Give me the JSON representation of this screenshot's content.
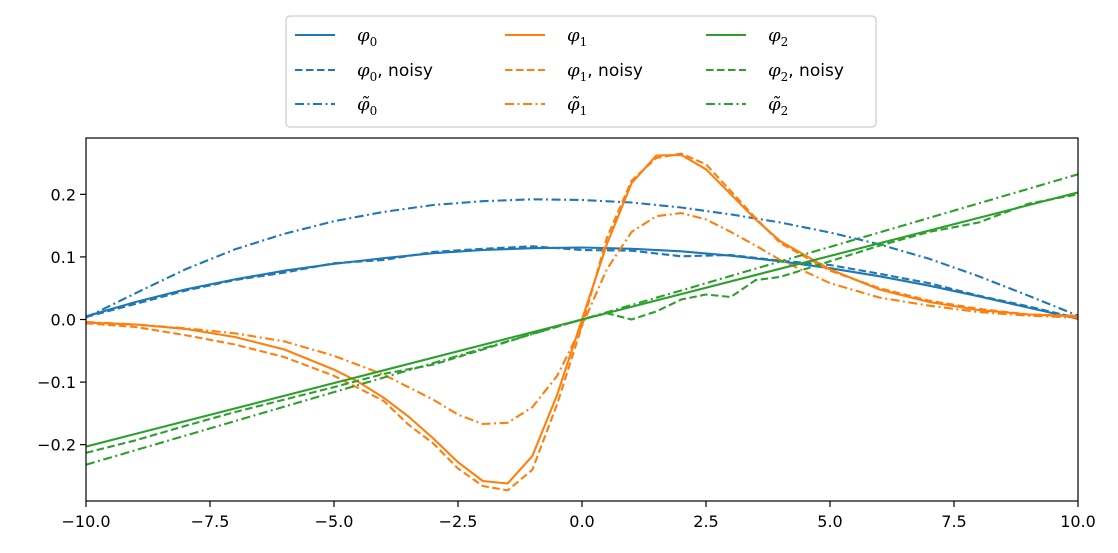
{
  "chart_data": {
    "type": "line",
    "title": "",
    "xlabel": "",
    "ylabel": "",
    "xlim": [
      -10,
      10
    ],
    "ylim": [
      -0.29,
      0.29
    ],
    "x_ticks": [
      -10,
      -7.5,
      -5,
      -2.5,
      0,
      2.5,
      5,
      7.5,
      10
    ],
    "x_tick_labels": [
      "−10.0",
      "−7.5",
      "−5.0",
      "−2.5",
      "0.0",
      "2.5",
      "5.0",
      "7.5",
      "10.0"
    ],
    "y_ticks": [
      -0.2,
      -0.1,
      0.0,
      0.1,
      0.2
    ],
    "y_tick_labels": [
      "−0.2",
      "−0.1",
      "0.0",
      "0.1",
      "0.2"
    ],
    "grid": false,
    "legend_position": "top-center, outside plot area, 3 columns",
    "colors": {
      "blue": "#1f77b4",
      "orange": "#ff7f0e",
      "green": "#2ca02c"
    },
    "series": [
      {
        "name": "φ₀",
        "color": "#1f77b4",
        "style": "solid",
        "x": [
          -10,
          -9,
          -8,
          -7,
          -6,
          -5,
          -4,
          -3,
          -2,
          -1,
          0,
          1,
          2,
          3,
          4,
          5,
          6,
          7,
          8,
          9,
          10
        ],
        "y": [
          0.005,
          0.028,
          0.048,
          0.064,
          0.078,
          0.089,
          0.098,
          0.106,
          0.111,
          0.114,
          0.115,
          0.113,
          0.109,
          0.102,
          0.093,
          0.082,
          0.069,
          0.054,
          0.037,
          0.019,
          0.001
        ]
      },
      {
        "name": "φ₀, noisy",
        "color": "#1f77b4",
        "style": "dashed",
        "x": [
          -10,
          -9,
          -8,
          -7,
          -6,
          -5,
          -4,
          -3,
          -2,
          -1,
          0,
          1,
          2,
          3,
          4,
          5,
          6,
          7,
          8,
          9,
          10
        ],
        "y": [
          0.004,
          0.025,
          0.046,
          0.063,
          0.075,
          0.09,
          0.095,
          0.108,
          0.113,
          0.117,
          0.111,
          0.11,
          0.101,
          0.103,
          0.094,
          0.087,
          0.073,
          0.058,
          0.038,
          0.021,
          0.002
        ]
      },
      {
        "name": "φ̃₀",
        "color": "#1f77b4",
        "style": "dashdot",
        "x": [
          -10,
          -9,
          -8,
          -7,
          -6,
          -5,
          -4,
          -3,
          -2,
          -1,
          0,
          1,
          2,
          3,
          4,
          5,
          6,
          7,
          8,
          9,
          10
        ],
        "y": [
          0.003,
          0.042,
          0.08,
          0.112,
          0.137,
          0.157,
          0.172,
          0.183,
          0.189,
          0.192,
          0.191,
          0.187,
          0.179,
          0.168,
          0.155,
          0.139,
          0.12,
          0.097,
          0.069,
          0.038,
          0.006
        ]
      },
      {
        "name": "φ₁",
        "color": "#ff7f0e",
        "style": "solid",
        "x": [
          -10,
          -9,
          -8,
          -7,
          -6,
          -5,
          -4.5,
          -4,
          -3.5,
          -3,
          -2.5,
          -2,
          -1.5,
          -1,
          -0.5,
          0,
          0.5,
          1,
          1.5,
          2,
          2.5,
          3,
          3.5,
          4,
          5,
          6,
          7,
          8,
          9,
          10
        ],
        "y": [
          -0.005,
          -0.008,
          -0.015,
          -0.028,
          -0.048,
          -0.08,
          -0.1,
          -0.125,
          -0.155,
          -0.19,
          -0.228,
          -0.258,
          -0.262,
          -0.218,
          -0.12,
          0.0,
          0.12,
          0.218,
          0.262,
          0.263,
          0.24,
          0.2,
          0.16,
          0.125,
          0.08,
          0.048,
          0.028,
          0.015,
          0.008,
          0.005
        ]
      },
      {
        "name": "φ₁, noisy",
        "color": "#ff7f0e",
        "style": "dashed",
        "x": [
          -10,
          -9,
          -8,
          -7,
          -6,
          -5,
          -4.5,
          -4,
          -3.5,
          -3,
          -2.5,
          -2,
          -1.5,
          -1,
          -0.5,
          0,
          0.5,
          1,
          1.5,
          2,
          2.5,
          3,
          3.5,
          4,
          5,
          6,
          7,
          8,
          9,
          10
        ],
        "y": [
          -0.006,
          -0.012,
          -0.025,
          -0.04,
          -0.06,
          -0.09,
          -0.11,
          -0.13,
          -0.168,
          -0.198,
          -0.238,
          -0.266,
          -0.273,
          -0.24,
          -0.135,
          -0.01,
          0.13,
          0.222,
          0.258,
          0.265,
          0.248,
          0.205,
          0.162,
          0.122,
          0.078,
          0.05,
          0.03,
          0.017,
          0.008,
          0.006
        ]
      },
      {
        "name": "φ̃₁",
        "color": "#ff7f0e",
        "style": "dashdot",
        "x": [
          -10,
          -9,
          -8,
          -7,
          -6,
          -5,
          -4,
          -3,
          -2.5,
          -2,
          -1.5,
          -1,
          -0.5,
          0,
          0.5,
          1,
          1.5,
          2,
          2.5,
          3,
          3.5,
          4,
          5,
          6,
          7,
          8,
          9,
          10
        ],
        "y": [
          -0.004,
          -0.008,
          -0.014,
          -0.022,
          -0.035,
          -0.058,
          -0.088,
          -0.128,
          -0.152,
          -0.167,
          -0.165,
          -0.14,
          -0.09,
          -0.01,
          0.08,
          0.14,
          0.165,
          0.17,
          0.16,
          0.14,
          0.118,
          0.095,
          0.058,
          0.035,
          0.022,
          0.012,
          0.006,
          0.003
        ]
      },
      {
        "name": "φ₂",
        "color": "#2ca02c",
        "style": "solid",
        "x": [
          -10,
          10
        ],
        "y": [
          -0.203,
          0.203
        ]
      },
      {
        "name": "φ₂, noisy",
        "color": "#2ca02c",
        "style": "dashed",
        "x": [
          -10,
          -9,
          -8,
          -7,
          -6,
          -5,
          -4,
          -3,
          -2,
          -1,
          0,
          0.5,
          1,
          1.5,
          2,
          2.5,
          3,
          3.5,
          4,
          5,
          6,
          7,
          8,
          9,
          10
        ],
        "y": [
          -0.213,
          -0.193,
          -0.17,
          -0.148,
          -0.128,
          -0.108,
          -0.087,
          -0.072,
          -0.048,
          -0.023,
          0.0,
          0.01,
          0.0,
          0.013,
          0.032,
          0.04,
          0.036,
          0.063,
          0.068,
          0.093,
          0.118,
          0.14,
          0.155,
          0.185,
          0.2
        ]
      },
      {
        "name": "φ̃₂",
        "color": "#2ca02c",
        "style": "dashdot",
        "x": [
          -10,
          10
        ],
        "y": [
          -0.232,
          0.232
        ]
      }
    ]
  }
}
